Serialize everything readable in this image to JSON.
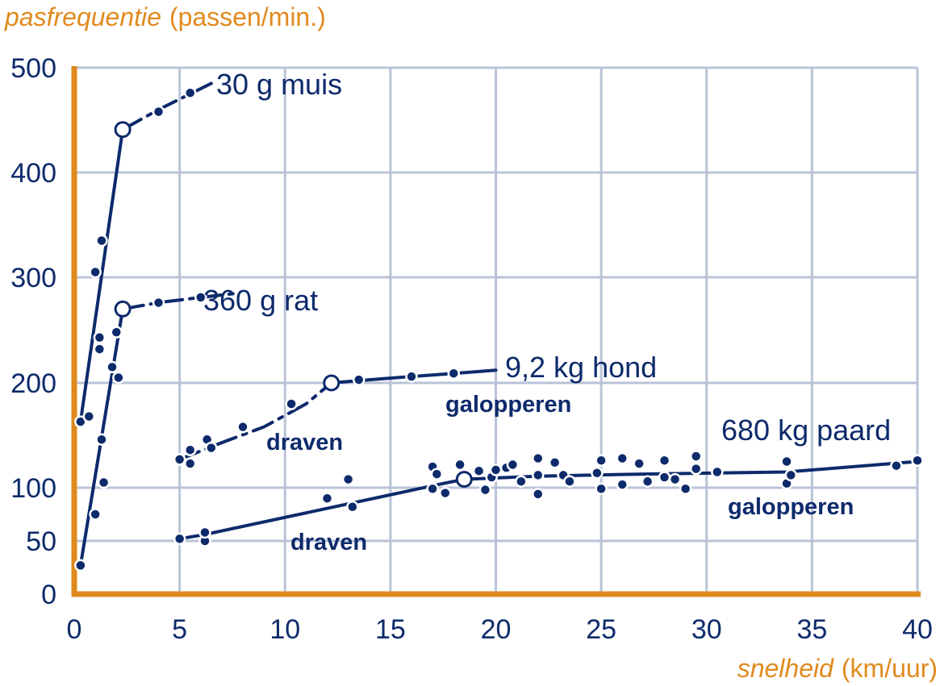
{
  "chart_data": {
    "type": "line",
    "y_title_italic": "pasfrequentie",
    "y_title_unit": "(passen/min.)",
    "x_title_italic": "snelheid",
    "x_title_unit": "(km/uur)",
    "xlim": [
      0,
      40
    ],
    "ylim": [
      0,
      500
    ],
    "x_ticks": [
      "0",
      "5",
      "10",
      "15",
      "20",
      "25",
      "30",
      "35",
      "40"
    ],
    "x_tick_values": [
      0,
      5,
      10,
      15,
      20,
      25,
      30,
      35,
      40
    ],
    "y_ticks": [
      "0",
      "50",
      "100",
      "200",
      "300",
      "400",
      "500"
    ],
    "y_tick_values": [
      0,
      50,
      100,
      200,
      300,
      400,
      500
    ],
    "y_gridlines": [
      50,
      100,
      200,
      300,
      400,
      500
    ],
    "x_gridlines": [
      5,
      10,
      15,
      20,
      25,
      30,
      35,
      40
    ],
    "grid": true,
    "colors": {
      "axis": "#e08a1e",
      "grid": "#b9c3d8",
      "series": "#0d2a6b"
    },
    "series": [
      {
        "name": "30 g muis",
        "solid_line": [
          [
            0.3,
            163
          ],
          [
            2.3,
            441
          ]
        ],
        "dashed_line": [
          [
            2.3,
            441
          ],
          [
            4,
            460
          ],
          [
            5.5,
            475
          ],
          [
            6.5,
            485
          ]
        ],
        "points": [
          [
            0.3,
            163
          ],
          [
            0.7,
            168
          ],
          [
            1.0,
            305
          ],
          [
            1.3,
            335
          ],
          [
            1.2,
            243
          ],
          [
            1.2,
            232
          ],
          [
            4.0,
            458
          ],
          [
            5.5,
            476
          ]
        ],
        "transition": [
          2.3,
          441
        ]
      },
      {
        "name": "360 g rat",
        "solid_line": [
          [
            0.3,
            27
          ],
          [
            2.3,
            270
          ]
        ],
        "dashed_line": [
          [
            2.3,
            270
          ],
          [
            4,
            276
          ],
          [
            6,
            281
          ],
          [
            7.8,
            285
          ]
        ],
        "points": [
          [
            0.3,
            27
          ],
          [
            1.0,
            75
          ],
          [
            1.4,
            105
          ],
          [
            1.3,
            146
          ],
          [
            1.8,
            215
          ],
          [
            2.1,
            205
          ],
          [
            2.0,
            248
          ],
          [
            4.0,
            276
          ],
          [
            6.0,
            281
          ]
        ],
        "transition": [
          2.3,
          270
        ]
      },
      {
        "name": "9,2 kg hond",
        "dashed_line": [
          [
            5,
            127
          ],
          [
            7,
            143
          ],
          [
            9,
            158
          ],
          [
            11,
            180
          ],
          [
            12.2,
            200
          ]
        ],
        "solid_line": [
          [
            12.2,
            200
          ],
          [
            14,
            203
          ],
          [
            16,
            206
          ],
          [
            18,
            209
          ],
          [
            20,
            212
          ]
        ],
        "points": [
          [
            5.0,
            127
          ],
          [
            5.5,
            136
          ],
          [
            5.5,
            123
          ],
          [
            6.3,
            146
          ],
          [
            6.5,
            138
          ],
          [
            8.0,
            158
          ],
          [
            10.3,
            180
          ],
          [
            13.5,
            203
          ],
          [
            16.0,
            206
          ],
          [
            18.0,
            209
          ]
        ],
        "transition": [
          12.2,
          200
        ]
      },
      {
        "name": "680 kg paard",
        "dashed_line": [
          [
            5,
            52
          ],
          [
            6.2,
            56
          ]
        ],
        "solid_line": [
          [
            6.2,
            56
          ],
          [
            17.5,
            104
          ],
          [
            18.5,
            108
          ],
          [
            22,
            111
          ],
          [
            27,
            113
          ],
          [
            33.8,
            115
          ],
          [
            40,
            125
          ]
        ],
        "points": [
          [
            5.0,
            52
          ],
          [
            6.2,
            50
          ],
          [
            6.2,
            58
          ],
          [
            12.0,
            90
          ],
          [
            13.0,
            108
          ],
          [
            13.2,
            82
          ],
          [
            17.0,
            120
          ],
          [
            17.2,
            113
          ],
          [
            17.0,
            99
          ],
          [
            17.6,
            95
          ],
          [
            18.3,
            122
          ],
          [
            19.2,
            116
          ],
          [
            19.5,
            98
          ],
          [
            19.8,
            110
          ],
          [
            20.0,
            117
          ],
          [
            20.5,
            119
          ],
          [
            20.8,
            122
          ],
          [
            21.2,
            106
          ],
          [
            22.0,
            128
          ],
          [
            22.0,
            112
          ],
          [
            22.0,
            94
          ],
          [
            22.8,
            124
          ],
          [
            23.2,
            112
          ],
          [
            23.5,
            106
          ],
          [
            24.8,
            114
          ],
          [
            25.0,
            126
          ],
          [
            25.0,
            99
          ],
          [
            26.0,
            128
          ],
          [
            26.0,
            103
          ],
          [
            26.8,
            123
          ],
          [
            27.2,
            106
          ],
          [
            28.0,
            126
          ],
          [
            28.0,
            110
          ],
          [
            28.5,
            108
          ],
          [
            29.0,
            99
          ],
          [
            29.5,
            130
          ],
          [
            29.5,
            118
          ],
          [
            30.5,
            115
          ],
          [
            33.8,
            125
          ],
          [
            33.8,
            104
          ],
          [
            34.0,
            112
          ],
          [
            39.0,
            121
          ],
          [
            40.0,
            126
          ]
        ],
        "transition": [
          18.5,
          108
        ]
      }
    ],
    "annotations": {
      "muis_label": "30 g muis",
      "rat_label": "360 g rat",
      "hond_label": "9,2 kg hond",
      "paard_label": "680 kg paard",
      "hond_draven": "draven",
      "hond_galopperen": "galopperen",
      "paard_draven": "draven",
      "paard_galopperen": "galopperen"
    }
  }
}
